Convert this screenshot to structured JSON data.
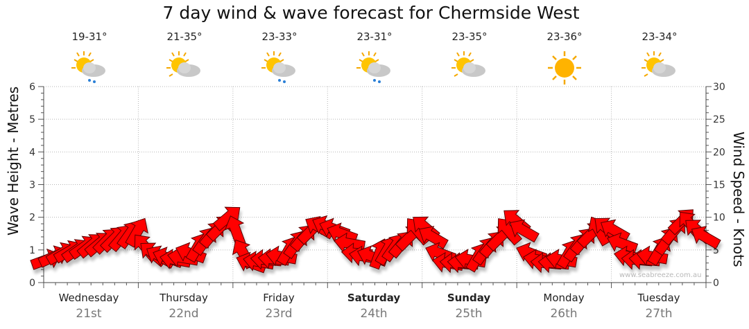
{
  "chart_data": {
    "type": "line",
    "title": "7 day wind & wave forecast for Chermside West",
    "ylabel": "Wave Height - Metres",
    "y2label": "Wind Speed - Knots",
    "ylim": [
      0,
      6
    ],
    "y2lim": [
      0,
      30
    ],
    "yticks": [
      "0",
      "1",
      "2",
      "3",
      "4",
      "5",
      "6"
    ],
    "y2ticks": [
      "0",
      "5",
      "10",
      "15",
      "20",
      "25",
      "30"
    ],
    "grid": true,
    "days": [
      {
        "name": "Wednesday",
        "date": "21st",
        "temp": "19-31°",
        "icon": "sun-cloud-rain-icon",
        "bold": false
      },
      {
        "name": "Thursday",
        "date": "22nd",
        "temp": "21-35°",
        "icon": "sun-cloud-icon",
        "bold": false
      },
      {
        "name": "Friday",
        "date": "23rd",
        "temp": "23-33°",
        "icon": "sun-cloud-rain-icon",
        "bold": false
      },
      {
        "name": "Saturday",
        "date": "24th",
        "temp": "23-31°",
        "icon": "sun-cloud-rain-icon",
        "bold": true
      },
      {
        "name": "Sunday",
        "date": "25th",
        "temp": "23-35°",
        "icon": "sun-cloud-icon",
        "bold": true
      },
      {
        "name": "Monday",
        "date": "26th",
        "temp": "23-36°",
        "icon": "sun-icon",
        "bold": false
      },
      {
        "name": "Tuesday",
        "date": "27th",
        "temp": "23-34°",
        "icon": "sun-cloud-icon",
        "bold": false
      }
    ],
    "series": [
      {
        "name": "wind",
        "unit": "knots",
        "color": "#ff0000",
        "day_offset": [
          0,
          0.08,
          0.16,
          0.24,
          0.32,
          0.4,
          0.48,
          0.56,
          0.64,
          0.72,
          0.8,
          0.88,
          0.96,
          1.04,
          1.12,
          1.2,
          1.28,
          1.36,
          1.44,
          1.52,
          1.6,
          1.68,
          1.76,
          1.84,
          1.92,
          2.0,
          2.08,
          2.16,
          2.24,
          2.32,
          2.4,
          2.48,
          2.56,
          2.64,
          2.72,
          2.8,
          2.88,
          2.96,
          3.04,
          3.12,
          3.2,
          3.28,
          3.36,
          3.44,
          3.52,
          3.6,
          3.68,
          3.76,
          3.84,
          3.92,
          4.0,
          4.08,
          4.16,
          4.24,
          4.32,
          4.4,
          4.48,
          4.56,
          4.64,
          4.72,
          4.8,
          4.88,
          4.96,
          5.04,
          5.12,
          5.2,
          5.28,
          5.36,
          5.44,
          5.52,
          5.6,
          5.68,
          5.76,
          5.84,
          5.92,
          6.0,
          6.08,
          6.16,
          6.24,
          6.32,
          6.4,
          6.48,
          6.56,
          6.64,
          6.72,
          6.8,
          6.88,
          6.96
        ],
        "values": [
          3.5,
          4.0,
          4.5,
          4.8,
          5.0,
          5.5,
          5.8,
          6.0,
          6.5,
          6.8,
          7.0,
          7.5,
          7.8,
          5.5,
          4.5,
          4.0,
          3.8,
          3.5,
          3.8,
          4.5,
          5.5,
          6.5,
          7.5,
          8.5,
          10.0,
          8.0,
          4.5,
          3.0,
          3.2,
          3.5,
          3.6,
          4.0,
          5.0,
          6.0,
          7.0,
          8.0,
          8.5,
          8.6,
          8.2,
          7.5,
          6.0,
          4.5,
          4.0,
          4.0,
          4.5,
          5.0,
          5.5,
          6.0,
          7.0,
          8.0,
          8.5,
          7.0,
          4.5,
          3.0,
          3.0,
          3.0,
          3.5,
          4.0,
          5.0,
          6.0,
          7.0,
          8.0,
          9.5,
          8.0,
          4.5,
          3.5,
          3.0,
          3.0,
          3.5,
          4.5,
          5.5,
          6.5,
          7.5,
          8.0,
          8.3,
          8.0,
          6.0,
          4.0,
          3.5,
          3.5,
          4.0,
          5.0,
          6.5,
          8.0,
          9.5,
          9.0,
          8.0,
          7.0
        ],
        "directions": [
          250,
          245,
          240,
          240,
          235,
          235,
          230,
          230,
          225,
          225,
          220,
          215,
          210,
          140,
          130,
          120,
          110,
          100,
          100,
          110,
          210,
          215,
          220,
          225,
          230,
          160,
          150,
          110,
          100,
          95,
          95,
          100,
          210,
          215,
          220,
          225,
          120,
          115,
          110,
          110,
          100,
          95,
          100,
          110,
          200,
          210,
          215,
          220,
          225,
          140,
          130,
          120,
          110,
          100,
          95,
          95,
          100,
          210,
          215,
          220,
          225,
          140,
          130,
          120,
          110,
          100,
          95,
          95,
          100,
          210,
          215,
          220,
          225,
          150,
          130,
          120,
          110,
          100,
          95,
          95,
          100,
          210,
          215,
          220,
          225,
          140,
          130,
          120
        ]
      }
    ]
  },
  "watermark": "www.seabreeze.com.au"
}
